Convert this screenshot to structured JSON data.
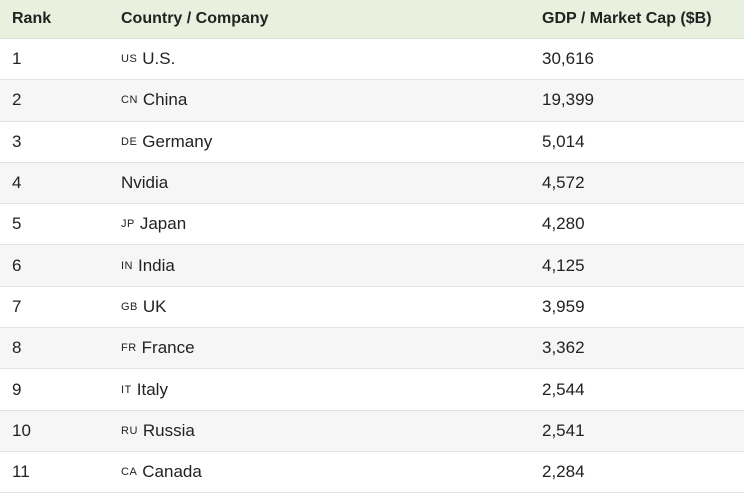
{
  "table": {
    "header": [
      "Rank",
      "Country / Company",
      "GDP / Market Cap ($B)"
    ],
    "rows": [
      {
        "rank": "1",
        "code": "US",
        "name": "U.S.",
        "value": "30,616"
      },
      {
        "rank": "2",
        "code": "CN",
        "name": "China",
        "value": "19,399"
      },
      {
        "rank": "3",
        "code": "DE",
        "name": "Germany",
        "value": "5,014"
      },
      {
        "rank": "4",
        "name": "Nvidia",
        "value": "4,572"
      },
      {
        "rank": "5",
        "code": "JP",
        "name": "Japan",
        "value": "4,280"
      },
      {
        "rank": "6",
        "code": "IN",
        "name": "India",
        "value": "4,125"
      },
      {
        "rank": "7",
        "code": "GB",
        "name": "UK",
        "value": "3,959"
      },
      {
        "rank": "8",
        "code": "FR",
        "name": "France",
        "value": "3,362"
      },
      {
        "rank": "9",
        "code": "IT",
        "name": "Italy",
        "value": "2,544"
      },
      {
        "rank": "10",
        "code": "RU",
        "name": "Russia",
        "value": "2,541"
      },
      {
        "rank": "11",
        "code": "CA",
        "name": "Canada",
        "value": "2,284"
      }
    ]
  }
}
